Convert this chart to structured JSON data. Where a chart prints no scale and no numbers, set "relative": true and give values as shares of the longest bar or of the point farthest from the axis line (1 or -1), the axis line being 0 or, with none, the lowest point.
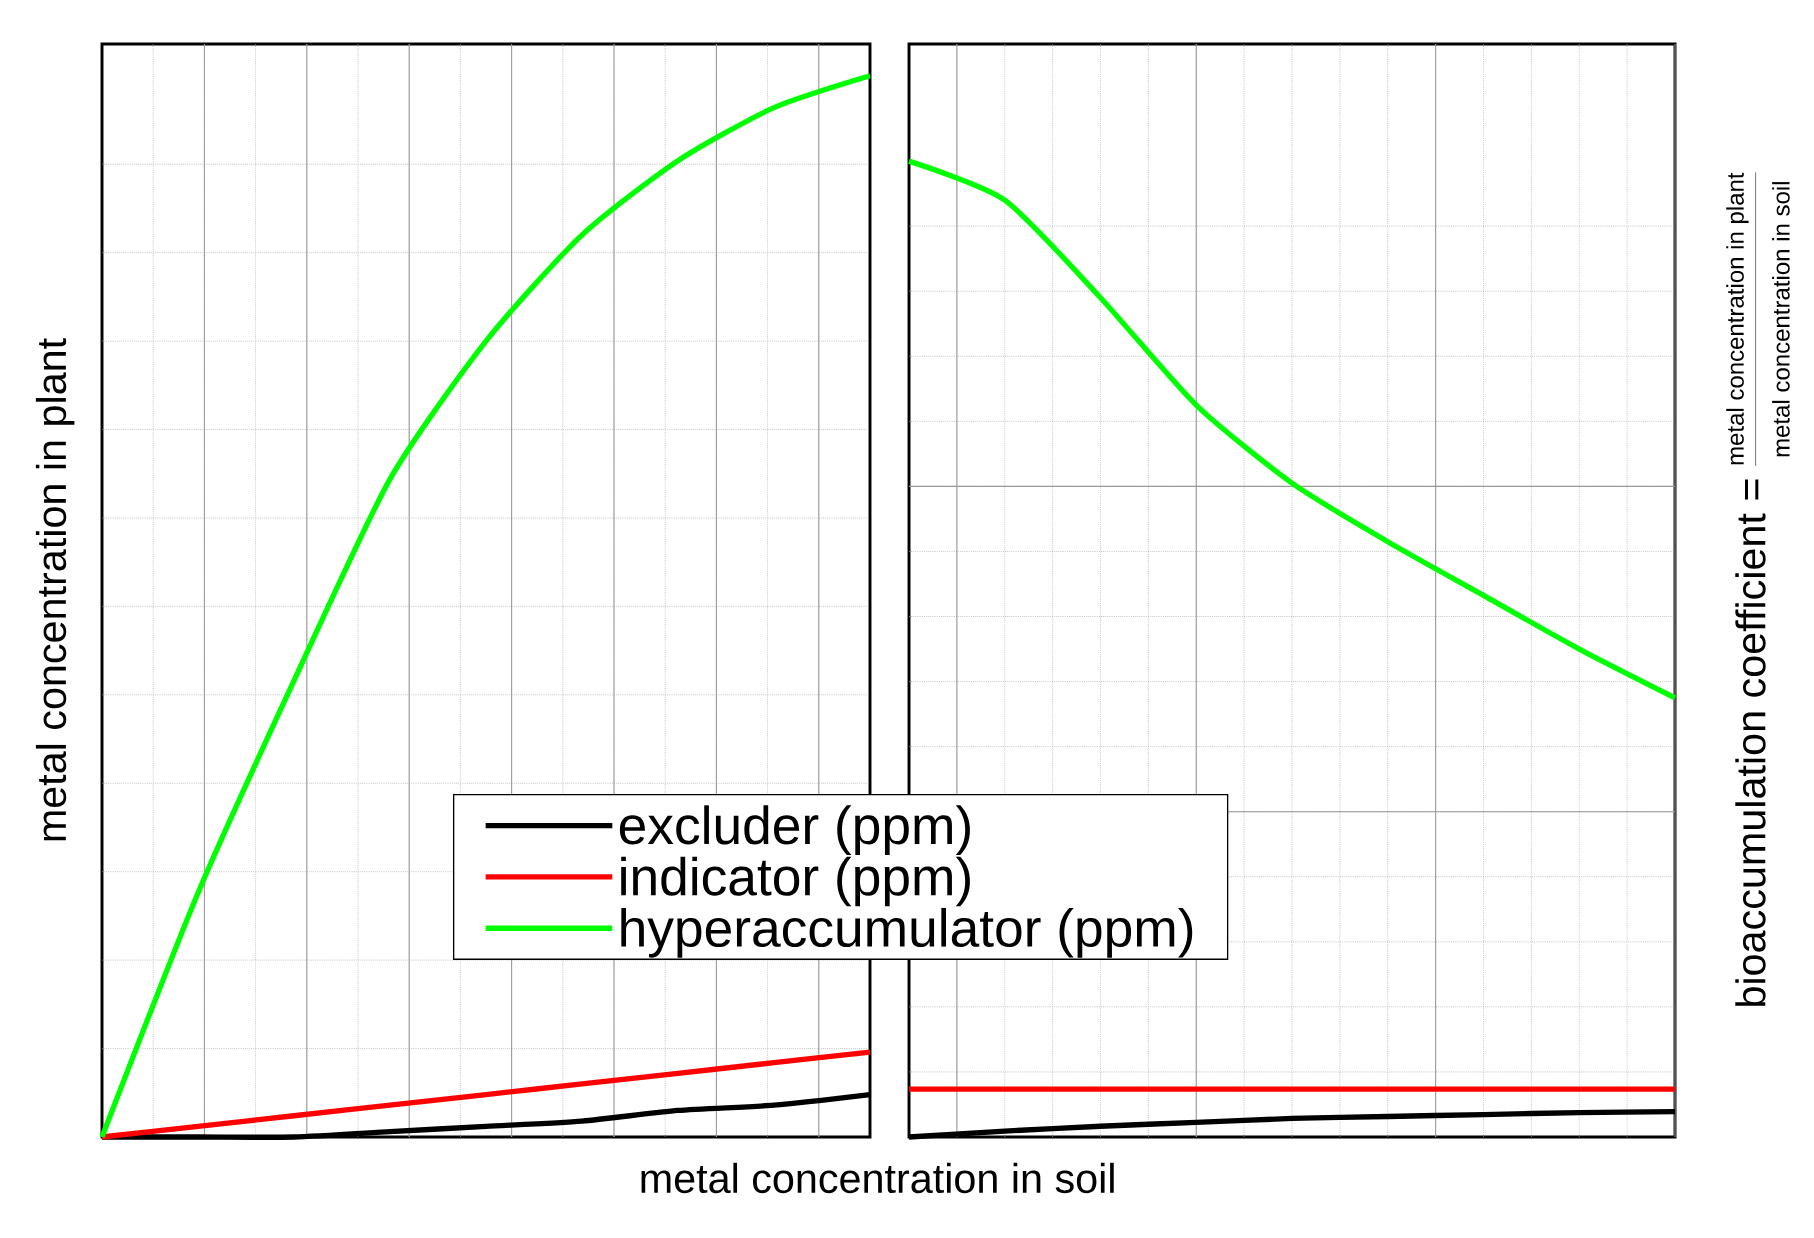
{
  "chart_data": [
    {
      "type": "line",
      "relative": true,
      "categories": [
        null,
        null,
        null,
        null,
        null,
        null,
        null,
        null,
        null
      ],
      "xlabel": "metal concentration in soil",
      "ylabel": "metal concentration in plant",
      "legend": "bottom right",
      "grid": true,
      "series": [
        {
          "name": "excluder (ppm)",
          "color": "#000000",
          "values": [
            0,
            0,
            0,
            0.005,
            0.01,
            0.015,
            0.025,
            0.03,
            0.04
          ]
        },
        {
          "name": "indicator (ppm)",
          "color": "#ff0000",
          "values": [
            0,
            0.01,
            0.02,
            0.03,
            0.04,
            0.05,
            0.06,
            0.07,
            0.08
          ]
        },
        {
          "name": "hyperaccumulator (ppm)",
          "color": "#00ff00",
          "values": [
            0,
            0.23,
            0.43,
            0.62,
            0.75,
            0.85,
            0.92,
            0.97,
            1
          ]
        }
      ]
    },
    {
      "type": "line",
      "relative": true,
      "categories": [
        null,
        null,
        null,
        null,
        null,
        null,
        null,
        null,
        null
      ],
      "ylabel": "bioaccumulation coefficient =",
      "annotations": [
        "metal concentration in plant",
        "metal concentration in soil"
      ],
      "grid": true,
      "series": [
        {
          "color": "#000000",
          "values": [
            0,
            0.006,
            0.011,
            0.015,
            0.019,
            0.021,
            0.023,
            0.025,
            0.026
          ]
        },
        {
          "color": "#ff0000",
          "values": [
            0.049,
            0.049,
            0.049,
            0.049,
            0.049,
            0.049,
            0.049,
            0.049,
            0.049
          ]
        },
        {
          "color": "#00ff00",
          "values": [
            1,
            0.96,
            0.86,
            0.75,
            0.67,
            0.61,
            0.555,
            0.5,
            0.45
          ]
        }
      ]
    }
  ]
}
